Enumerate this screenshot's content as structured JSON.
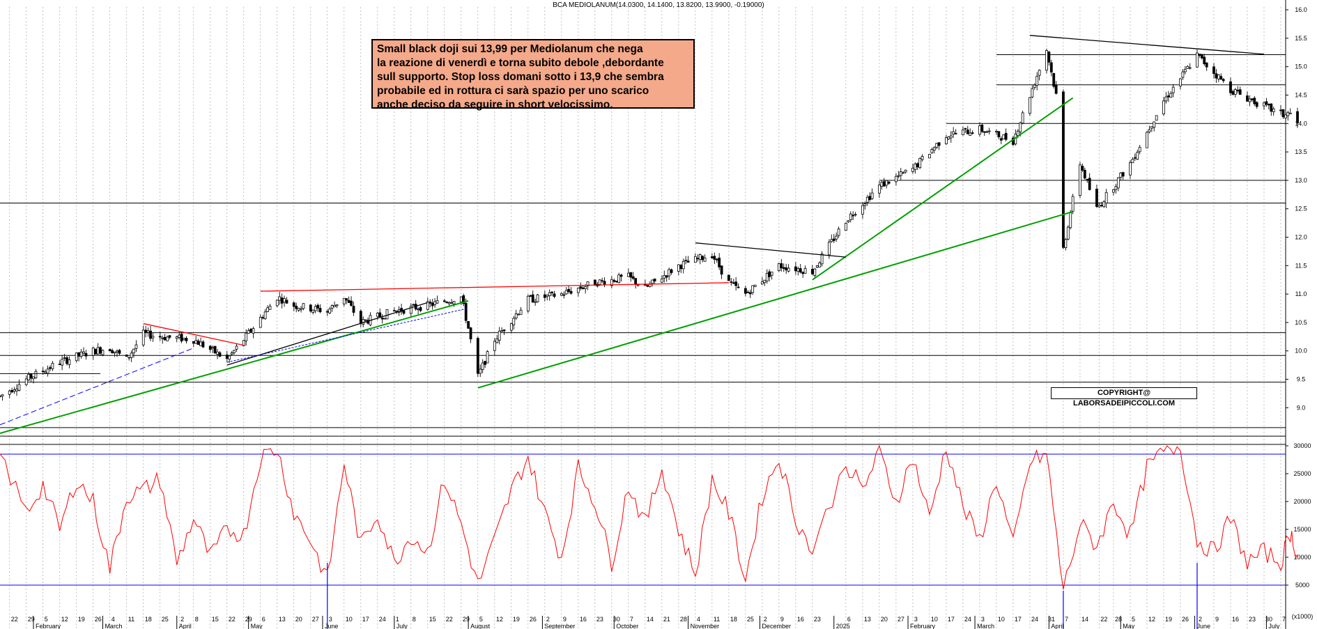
{
  "header": {
    "title": "BCA MEDIOLANUM(14.0300, 14.1400, 13.8200, 13.9900, -0.19000)"
  },
  "annotation": {
    "lines": [
      "Small black doji sui 13,99 per Mediolanum che nega",
      "la reazione di venerdì e torna subito debole ,debordante",
      "sull supporto. Stop loss domani sotto i 13,9 che sembra",
      "probabile ed in rottura ci sarà spazio per uno scarico",
      "anche deciso da seguire in short velocissimo."
    ]
  },
  "copyright": "COPYRIGHT@ LABORSADEIPICCOLI.COM",
  "volume_unit": "(x1000)",
  "colors": {
    "price": "#000000",
    "oscillator": "#ff0000",
    "volume": "#0000ff",
    "trend_green": "#00a000",
    "trend_red": "#ff0000",
    "grid": "#9a9a9a"
  },
  "chart_data": [
    {
      "type": "candlestick",
      "title": "BCA MEDIOLANUM(14.0300, 14.1400, 13.8200, 13.9900, -0.19000)",
      "last": {
        "open": 14.03,
        "high": 14.14,
        "low": 13.82,
        "close": 13.99,
        "change": -0.19
      },
      "y_ticks": [
        9.0,
        9.5,
        10.0,
        10.5,
        11.0,
        11.5,
        12.0,
        12.5,
        13.0,
        13.5,
        14.0,
        14.5,
        15.0,
        15.5,
        16.0
      ],
      "ylim": [
        8.6,
        16.05
      ],
      "horizontal_levels": [
        15.21,
        14.68,
        14.0,
        13.0,
        12.6,
        10.32,
        9.92,
        9.45,
        8.65,
        8.5
      ],
      "close_path": [
        [
          "2024-01-18",
          9.2
        ],
        [
          "2024-01-29",
          9.5
        ],
        [
          "2024-02-12",
          9.8
        ],
        [
          "2024-02-26",
          10.0
        ],
        [
          "2024-03-04",
          10.05
        ],
        [
          "2024-03-11",
          9.85
        ],
        [
          "2024-03-18",
          10.3
        ],
        [
          "2024-03-25",
          10.25
        ],
        [
          "2024-04-08",
          10.2
        ],
        [
          "2024-04-22",
          9.85
        ],
        [
          "2024-04-29",
          10.2
        ],
        [
          "2024-05-13",
          10.95
        ],
        [
          "2024-05-20",
          10.8
        ],
        [
          "2024-06-03",
          10.7
        ],
        [
          "2024-06-10",
          10.95
        ],
        [
          "2024-06-17",
          10.5
        ],
        [
          "2024-07-01",
          10.7
        ],
        [
          "2024-07-15",
          10.8
        ],
        [
          "2024-07-29",
          10.95
        ],
        [
          "2024-08-01",
          10.4
        ],
        [
          "2024-08-05",
          9.55
        ],
        [
          "2024-08-12",
          10.2
        ],
        [
          "2024-08-26",
          10.9
        ],
        [
          "2024-09-09",
          11.0
        ],
        [
          "2024-09-23",
          11.2
        ],
        [
          "2024-10-07",
          11.3
        ],
        [
          "2024-10-14",
          11.1
        ],
        [
          "2024-10-28",
          11.5
        ],
        [
          "2024-11-11",
          11.7
        ],
        [
          "2024-11-18",
          11.2
        ],
        [
          "2024-11-25",
          11.0
        ],
        [
          "2024-12-09",
          11.5
        ],
        [
          "2024-12-23",
          11.4
        ],
        [
          "2025-01-06",
          12.3
        ],
        [
          "2025-01-20",
          12.9
        ],
        [
          "2025-02-03",
          13.2
        ],
        [
          "2025-02-17",
          13.8
        ],
        [
          "2025-03-03",
          13.9
        ],
        [
          "2025-03-17",
          13.7
        ],
        [
          "2025-03-24",
          14.5
        ],
        [
          "2025-03-31",
          15.3
        ],
        [
          "2025-04-04",
          14.5
        ],
        [
          "2025-04-07",
          11.8
        ],
        [
          "2025-04-14",
          13.3
        ],
        [
          "2025-04-21",
          12.5
        ],
        [
          "2025-05-05",
          13.3
        ],
        [
          "2025-05-19",
          14.4
        ],
        [
          "2025-06-02",
          15.2
        ],
        [
          "2025-06-16",
          14.6
        ],
        [
          "2025-06-30",
          14.3
        ],
        [
          "2025-07-08",
          14.15
        ],
        [
          "2025-07-11",
          14.18
        ],
        [
          "2025-07-14",
          13.99
        ]
      ],
      "trendlines": [
        {
          "color": "green",
          "from": [
            "2024-01-18",
            8.55
          ],
          "to": [
            "2024-08-01",
            10.88
          ]
        },
        {
          "color": "green",
          "from": [
            "2024-08-05",
            9.35
          ],
          "to": [
            "2025-04-11",
            12.45
          ]
        },
        {
          "color": "green",
          "from": [
            "2024-12-23",
            11.25
          ],
          "to": [
            "2025-04-11",
            14.45
          ]
        },
        {
          "color": "red",
          "from": [
            "2024-05-06",
            11.05
          ],
          "to": [
            "2024-11-18",
            11.2
          ]
        },
        {
          "color": "red",
          "from": [
            "2024-03-18",
            10.48
          ],
          "to": [
            "2024-04-29",
            10.1
          ]
        },
        {
          "color": "black",
          "from": [
            "2024-11-04",
            11.9
          ],
          "to": [
            "2025-01-06",
            11.65
          ]
        },
        {
          "color": "black",
          "from": [
            "2025-03-24",
            15.55
          ],
          "to": [
            "2025-06-30",
            15.22
          ]
        },
        {
          "color": "black",
          "from": [
            "2024-04-22",
            9.75
          ],
          "to": [
            "2024-07-15",
            10.85
          ]
        }
      ]
    },
    {
      "type": "line",
      "name": "oscillator",
      "y_ticks": [
        5000,
        10000,
        15000,
        20000,
        25000,
        30000
      ],
      "ylim": [
        0,
        30000
      ],
      "horizontal_levels": [
        28500,
        5000
      ],
      "points": [
        [
          "2024-01-18",
          28500
        ],
        [
          "2024-01-29",
          18000
        ],
        [
          "2024-02-05",
          23000
        ],
        [
          "2024-02-12",
          15000
        ],
        [
          "2024-02-19",
          24000
        ],
        [
          "2024-02-26",
          20000
        ],
        [
          "2024-03-04",
          8000
        ],
        [
          "2024-03-11",
          21000
        ],
        [
          "2024-03-18",
          22000
        ],
        [
          "2024-03-25",
          24000
        ],
        [
          "2024-04-01",
          9000
        ],
        [
          "2024-04-08",
          17000
        ],
        [
          "2024-04-15",
          10000
        ],
        [
          "2024-04-22",
          15000
        ],
        [
          "2024-04-29",
          14000
        ],
        [
          "2024-05-06",
          28000
        ],
        [
          "2024-05-13",
          29500
        ],
        [
          "2024-05-20",
          18000
        ],
        [
          "2024-05-27",
          13000
        ],
        [
          "2024-06-03",
          6000
        ],
        [
          "2024-06-10",
          27000
        ],
        [
          "2024-06-17",
          12000
        ],
        [
          "2024-06-24",
          18000
        ],
        [
          "2024-07-01",
          9000
        ],
        [
          "2024-07-08",
          14000
        ],
        [
          "2024-07-15",
          11000
        ],
        [
          "2024-07-22",
          24000
        ],
        [
          "2024-07-29",
          16000
        ],
        [
          "2024-08-05",
          5000
        ],
        [
          "2024-08-12",
          13000
        ],
        [
          "2024-08-19",
          22000
        ],
        [
          "2024-08-26",
          28000
        ],
        [
          "2024-09-02",
          18000
        ],
        [
          "2024-09-09",
          10000
        ],
        [
          "2024-09-16",
          26000
        ],
        [
          "2024-09-23",
          20000
        ],
        [
          "2024-09-30",
          9000
        ],
        [
          "2024-10-07",
          23000
        ],
        [
          "2024-10-14",
          16000
        ],
        [
          "2024-10-21",
          26000
        ],
        [
          "2024-10-28",
          15000
        ],
        [
          "2024-11-04",
          7000
        ],
        [
          "2024-11-11",
          24000
        ],
        [
          "2024-11-18",
          18000
        ],
        [
          "2024-11-25",
          6000
        ],
        [
          "2024-12-02",
          21000
        ],
        [
          "2024-12-09",
          28000
        ],
        [
          "2024-12-16",
          17000
        ],
        [
          "2024-12-23",
          11000
        ],
        [
          "2025-01-06",
          27000
        ],
        [
          "2025-01-13",
          22000
        ],
        [
          "2025-01-20",
          29000
        ],
        [
          "2025-01-27",
          20000
        ],
        [
          "2025-02-03",
          28000
        ],
        [
          "2025-02-10",
          17000
        ],
        [
          "2025-02-17",
          30000
        ],
        [
          "2025-02-24",
          19000
        ],
        [
          "2025-03-03",
          13000
        ],
        [
          "2025-03-10",
          24000
        ],
        [
          "2025-03-17",
          12000
        ],
        [
          "2025-03-24",
          27000
        ],
        [
          "2025-03-31",
          28500
        ],
        [
          "2025-04-07",
          4000
        ],
        [
          "2025-04-14",
          16000
        ],
        [
          "2025-04-21",
          12000
        ],
        [
          "2025-04-28",
          20000
        ],
        [
          "2025-05-05",
          14000
        ],
        [
          "2025-05-12",
          26000
        ],
        [
          "2025-05-19",
          29000
        ],
        [
          "2025-05-26",
          30000
        ],
        [
          "2025-06-02",
          13000
        ],
        [
          "2025-06-09",
          11000
        ],
        [
          "2025-06-16",
          17000
        ],
        [
          "2025-06-23",
          9000
        ],
        [
          "2025-06-30",
          11000
        ],
        [
          "2025-07-07",
          9000
        ],
        [
          "2025-07-11",
          14500
        ],
        [
          "2025-07-14",
          10500
        ]
      ]
    },
    {
      "type": "bar",
      "name": "volume",
      "unit": "(x1000)",
      "x_range": [
        "2024-01-18",
        "2025-07-14"
      ],
      "spikes": [
        [
          "2024-06-03",
          9000
        ],
        [
          "2025-04-07",
          4000
        ],
        [
          "2025-06-02",
          9000
        ]
      ]
    }
  ],
  "x_axis": {
    "month_labels": [
      {
        "date": "2024-02-01",
        "label": "February"
      },
      {
        "date": "2024-03-01",
        "label": "March"
      },
      {
        "date": "2024-04-01",
        "label": "April"
      },
      {
        "date": "2024-05-01",
        "label": "May"
      },
      {
        "date": "2024-06-01",
        "label": "June"
      },
      {
        "date": "2024-07-01",
        "label": "July"
      },
      {
        "date": "2024-08-01",
        "label": "August"
      },
      {
        "date": "2024-09-01",
        "label": "September"
      },
      {
        "date": "2024-10-01",
        "label": "October"
      },
      {
        "date": "2024-11-01",
        "label": "November"
      },
      {
        "date": "2024-12-01",
        "label": "December"
      },
      {
        "date": "2025-01-01",
        "label": "2025"
      },
      {
        "date": "2025-02-01",
        "label": "February"
      },
      {
        "date": "2025-03-01",
        "label": "March"
      },
      {
        "date": "2025-04-01",
        "label": "April"
      },
      {
        "date": "2025-05-01",
        "label": "May"
      },
      {
        "date": "2025-06-01",
        "label": "June"
      },
      {
        "date": "2025-07-01",
        "label": "July"
      }
    ],
    "day_labels": [
      [
        "2024-01-22",
        "22"
      ],
      [
        "2024-01-29",
        "29"
      ],
      [
        "2024-02-05",
        "5"
      ],
      [
        "2024-02-12",
        "12"
      ],
      [
        "2024-02-19",
        "19"
      ],
      [
        "2024-02-26",
        "26"
      ],
      [
        "2024-03-04",
        "4"
      ],
      [
        "2024-03-11",
        "11"
      ],
      [
        "2024-03-18",
        "18"
      ],
      [
        "2024-03-25",
        "25"
      ],
      [
        "2024-04-02",
        "2"
      ],
      [
        "2024-04-08",
        "8"
      ],
      [
        "2024-04-15",
        "15"
      ],
      [
        "2024-04-22",
        "22"
      ],
      [
        "2024-04-29",
        "29"
      ],
      [
        "2024-05-06",
        "6"
      ],
      [
        "2024-05-13",
        "13"
      ],
      [
        "2024-05-20",
        "20"
      ],
      [
        "2024-05-27",
        "27"
      ],
      [
        "2024-06-03",
        "3"
      ],
      [
        "2024-06-10",
        "10"
      ],
      [
        "2024-06-17",
        "17"
      ],
      [
        "2024-06-24",
        "24"
      ],
      [
        "2024-07-01",
        "1"
      ],
      [
        "2024-07-08",
        "8"
      ],
      [
        "2024-07-15",
        "15"
      ],
      [
        "2024-07-22",
        "22"
      ],
      [
        "2024-07-29",
        "29"
      ],
      [
        "2024-08-05",
        "5"
      ],
      [
        "2024-08-12",
        "12"
      ],
      [
        "2024-08-19",
        "19"
      ],
      [
        "2024-08-26",
        "26"
      ],
      [
        "2024-09-02",
        "2"
      ],
      [
        "2024-09-09",
        "9"
      ],
      [
        "2024-09-16",
        "16"
      ],
      [
        "2024-09-23",
        "23"
      ],
      [
        "2024-09-30",
        "30"
      ],
      [
        "2024-10-07",
        "7"
      ],
      [
        "2024-10-14",
        "14"
      ],
      [
        "2024-10-21",
        "21"
      ],
      [
        "2024-10-28",
        "28"
      ],
      [
        "2024-11-04",
        "4"
      ],
      [
        "2024-11-11",
        "11"
      ],
      [
        "2024-11-18",
        "18"
      ],
      [
        "2024-11-25",
        "25"
      ],
      [
        "2024-12-02",
        "2"
      ],
      [
        "2024-12-09",
        "9"
      ],
      [
        "2024-12-16",
        "16"
      ],
      [
        "2024-12-23",
        "23"
      ],
      [
        "2025-01-06",
        "6"
      ],
      [
        "2025-01-13",
        "13"
      ],
      [
        "2025-01-20",
        "20"
      ],
      [
        "2025-01-27",
        "27"
      ],
      [
        "2025-02-03",
        "3"
      ],
      [
        "2025-02-10",
        "10"
      ],
      [
        "2025-02-17",
        "17"
      ],
      [
        "2025-02-24",
        "24"
      ],
      [
        "2025-03-03",
        "3"
      ],
      [
        "2025-03-10",
        "10"
      ],
      [
        "2025-03-17",
        "17"
      ],
      [
        "2025-03-24",
        "24"
      ],
      [
        "2025-03-31",
        "31"
      ],
      [
        "2025-04-07",
        "7"
      ],
      [
        "2025-04-14",
        "14"
      ],
      [
        "2025-04-22",
        "22"
      ],
      [
        "2025-04-28",
        "28"
      ],
      [
        "2025-05-05",
        "5"
      ],
      [
        "2025-05-12",
        "12"
      ],
      [
        "2025-05-19",
        "19"
      ],
      [
        "2025-05-26",
        "26"
      ],
      [
        "2025-06-02",
        "2"
      ],
      [
        "2025-06-09",
        "9"
      ],
      [
        "2025-06-16",
        "16"
      ],
      [
        "2025-06-23",
        "23"
      ],
      [
        "2025-06-30",
        "30"
      ],
      [
        "2025-07-07",
        "7"
      ]
    ]
  }
}
